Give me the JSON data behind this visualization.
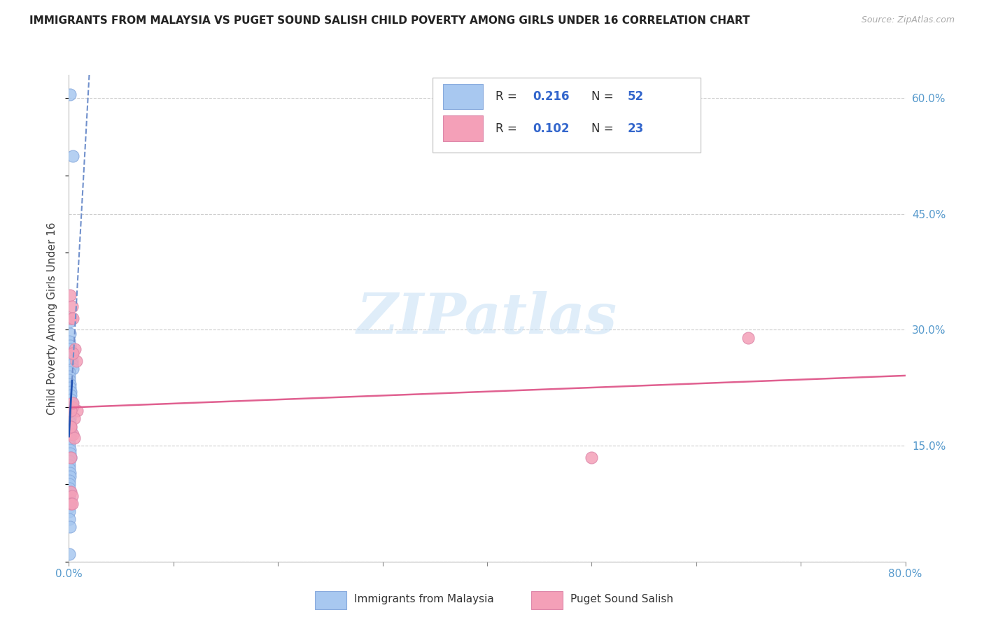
{
  "title": "IMMIGRANTS FROM MALAYSIA VS PUGET SOUND SALISH CHILD POVERTY AMONG GIRLS UNDER 16 CORRELATION CHART",
  "source": "Source: ZipAtlas.com",
  "ylabel": "Child Poverty Among Girls Under 16",
  "xlim": [
    0.0,
    0.8
  ],
  "ylim": [
    0.0,
    0.63
  ],
  "blue_color": "#a8c8f0",
  "pink_color": "#f4a0b8",
  "blue_line_color": "#2050b0",
  "blue_dash_color": "#7090cc",
  "pink_line_color": "#e06090",
  "blue_R": 0.216,
  "blue_N": 52,
  "pink_R": 0.102,
  "pink_N": 23,
  "watermark": "ZIPatlas",
  "blue_scatter_x": [
    0.001,
    0.004,
    0.0005,
    0.0008,
    0.0005,
    0.001,
    0.001,
    0.002,
    0.002,
    0.003,
    0.003,
    0.004,
    0.0003,
    0.0005,
    0.0007,
    0.001,
    0.001,
    0.0015,
    0.002,
    0.002,
    0.003,
    0.0002,
    0.0004,
    0.0006,
    0.0008,
    0.001,
    0.001,
    0.0015,
    0.002,
    0.0002,
    0.0004,
    0.0006,
    0.001,
    0.001,
    0.0015,
    0.0001,
    0.0003,
    0.0005,
    0.0008,
    0.001,
    0.0001,
    0.0003,
    0.0005,
    0.0008,
    0.0001,
    0.0003,
    0.0005,
    0.0001,
    0.0003,
    0.0001,
    0.001,
    0.0002
  ],
  "blue_scatter_y": [
    0.605,
    0.525,
    0.31,
    0.295,
    0.285,
    0.28,
    0.275,
    0.27,
    0.265,
    0.26,
    0.255,
    0.25,
    0.245,
    0.24,
    0.235,
    0.23,
    0.225,
    0.22,
    0.215,
    0.21,
    0.205,
    0.2,
    0.195,
    0.19,
    0.185,
    0.18,
    0.175,
    0.17,
    0.165,
    0.16,
    0.155,
    0.15,
    0.145,
    0.14,
    0.135,
    0.13,
    0.125,
    0.12,
    0.115,
    0.11,
    0.105,
    0.1,
    0.095,
    0.09,
    0.085,
    0.08,
    0.075,
    0.07,
    0.065,
    0.055,
    0.045,
    0.01
  ],
  "pink_scatter_x": [
    0.001,
    0.002,
    0.003,
    0.004,
    0.006,
    0.007,
    0.008,
    0.003,
    0.005,
    0.002,
    0.004,
    0.002,
    0.004,
    0.002,
    0.004,
    0.005,
    0.002,
    0.003,
    0.002,
    0.5,
    0.65,
    0.002,
    0.003
  ],
  "pink_scatter_y": [
    0.345,
    0.315,
    0.33,
    0.315,
    0.275,
    0.26,
    0.195,
    0.2,
    0.185,
    0.195,
    0.27,
    0.175,
    0.165,
    0.135,
    0.205,
    0.16,
    0.09,
    0.085,
    0.175,
    0.135,
    0.29,
    0.075,
    0.075
  ]
}
